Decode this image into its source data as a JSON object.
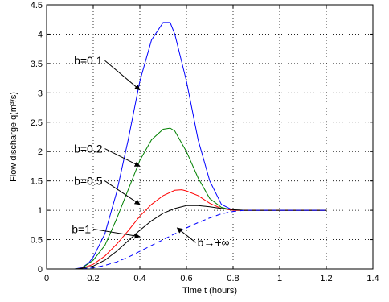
{
  "chart_data": {
    "type": "line",
    "xlabel": "Time t (hours)",
    "ylabel": "Flow discharge q(m³/s)",
    "xlim": [
      0,
      1.4
    ],
    "ylim": [
      0,
      4.5
    ],
    "x_ticks": [
      "0",
      "0.2",
      "0.4",
      "0.6",
      "0.8",
      "1",
      "1.2",
      "1.4"
    ],
    "y_ticks": [
      "0",
      "0.5",
      "1",
      "1.5",
      "2",
      "2.5",
      "3",
      "3.5",
      "4",
      "4.5"
    ],
    "grid": true,
    "series": [
      {
        "name": "b=0.1",
        "color": "#0000ff",
        "dash": "solid",
        "x": [
          0.05,
          0.12,
          0.15,
          0.18,
          0.2,
          0.25,
          0.3,
          0.35,
          0.4,
          0.45,
          0.5,
          0.53,
          0.55,
          0.6,
          0.65,
          0.7,
          0.75,
          0.8,
          0.85,
          0.9,
          1.0,
          1.1,
          1.2
        ],
        "y": [
          0,
          0,
          0.02,
          0.1,
          0.2,
          0.6,
          1.3,
          2.2,
          3.2,
          3.9,
          4.2,
          4.2,
          4.0,
          3.2,
          2.2,
          1.5,
          1.1,
          1.0,
          1.0,
          1.0,
          1.0,
          1.0,
          1.0
        ]
      },
      {
        "name": "b=0.2",
        "color": "#008000",
        "dash": "solid",
        "x": [
          0.05,
          0.12,
          0.15,
          0.2,
          0.25,
          0.3,
          0.35,
          0.4,
          0.45,
          0.5,
          0.53,
          0.55,
          0.6,
          0.65,
          0.7,
          0.75,
          0.8,
          0.85,
          0.9,
          1.0,
          1.1,
          1.2
        ],
        "y": [
          0,
          0,
          0.01,
          0.15,
          0.4,
          0.85,
          1.35,
          1.85,
          2.2,
          2.38,
          2.4,
          2.35,
          2.0,
          1.55,
          1.2,
          1.05,
          1.0,
          1.0,
          1.0,
          1.0,
          1.0,
          1.0
        ]
      },
      {
        "name": "b=0.5",
        "color": "#ff0000",
        "dash": "solid",
        "x": [
          0.05,
          0.13,
          0.15,
          0.2,
          0.25,
          0.3,
          0.35,
          0.4,
          0.45,
          0.5,
          0.55,
          0.58,
          0.6,
          0.65,
          0.7,
          0.75,
          0.8,
          0.85,
          0.9,
          1.0,
          1.1,
          1.2
        ],
        "y": [
          0,
          0,
          0.01,
          0.08,
          0.22,
          0.42,
          0.65,
          0.9,
          1.1,
          1.25,
          1.34,
          1.35,
          1.33,
          1.25,
          1.12,
          1.03,
          1.0,
          1.0,
          1.0,
          1.0,
          1.0,
          1.0
        ]
      },
      {
        "name": "b=1",
        "color": "#000000",
        "dash": "solid",
        "x": [
          0.05,
          0.13,
          0.15,
          0.2,
          0.25,
          0.3,
          0.35,
          0.4,
          0.45,
          0.5,
          0.55,
          0.6,
          0.65,
          0.7,
          0.75,
          0.8,
          0.85,
          0.9,
          1.0,
          1.1,
          1.2
        ],
        "y": [
          0,
          0,
          0.01,
          0.05,
          0.15,
          0.3,
          0.48,
          0.66,
          0.82,
          0.95,
          1.03,
          1.08,
          1.08,
          1.06,
          1.03,
          1.01,
          1.0,
          1.0,
          1.0,
          1.0,
          1.0
        ]
      },
      {
        "name": "b→+∞",
        "color": "#0000ff",
        "dash": "dashed",
        "x": [
          0.05,
          0.15,
          0.2,
          0.25,
          0.3,
          0.35,
          0.4,
          0.45,
          0.5,
          0.55,
          0.6,
          0.65,
          0.7,
          0.75,
          0.8,
          0.85,
          0.9,
          1.0,
          1.1,
          1.2
        ],
        "y": [
          0,
          0,
          0.02,
          0.06,
          0.12,
          0.2,
          0.3,
          0.4,
          0.5,
          0.6,
          0.7,
          0.79,
          0.87,
          0.94,
          0.98,
          1.0,
          1.0,
          1.0,
          1.0,
          1.0
        ]
      }
    ],
    "annotations": [
      {
        "text": "b=0.1",
        "ax": 0.25,
        "ay": 3.55,
        "tx": 0.4,
        "ty": 3.05
      },
      {
        "text": "b=0.2",
        "ax": 0.25,
        "ay": 2.05,
        "tx": 0.4,
        "ty": 1.75
      },
      {
        "text": "b=0.5",
        "ax": 0.25,
        "ay": 1.5,
        "tx": 0.4,
        "ty": 1.1
      },
      {
        "text": "b=1",
        "ax": 0.2,
        "ay": 0.68,
        "tx": 0.4,
        "ty": 0.55
      },
      {
        "text": "b→+∞",
        "ax": 0.64,
        "ay": 0.45,
        "tx": 0.56,
        "ty": 0.7
      }
    ]
  }
}
